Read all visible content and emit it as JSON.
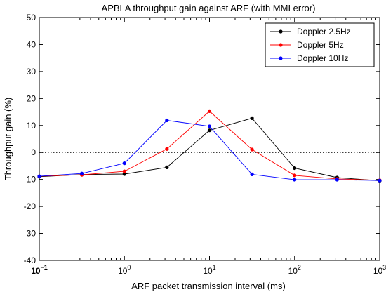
{
  "chart_data": {
    "type": "line",
    "title": "APBLA throughput gain against ARF (with MMI error)",
    "xlabel": "ARF packet transmission interval (ms)",
    "ylabel": "Throughput gain (%)",
    "x_scale": "log",
    "xlim": [
      0.1,
      1000
    ],
    "ylim": [
      -40,
      50
    ],
    "x_ticks": [
      {
        "value": 0.1,
        "base": "10",
        "exp": "−1"
      },
      {
        "value": 1,
        "base": "10",
        "exp": "0"
      },
      {
        "value": 10,
        "base": "10",
        "exp": "1"
      },
      {
        "value": 100,
        "base": "10",
        "exp": "2"
      },
      {
        "value": 1000,
        "base": "10",
        "exp": "3"
      }
    ],
    "y_ticks": [
      -40,
      -30,
      -20,
      -10,
      0,
      10,
      20,
      30,
      40,
      50
    ],
    "reference_line": {
      "y": 0,
      "style": "dotted"
    },
    "grid": false,
    "legend_position": "top-right",
    "series": [
      {
        "name": "Doppler 2.5Hz",
        "color": "#000000",
        "x": [
          0.1,
          0.316,
          1,
          3.16,
          10,
          31.6,
          100,
          316,
          1000
        ],
        "y": [
          -9,
          -8.2,
          -8,
          -5.5,
          8.2,
          12.7,
          -5.8,
          -9.3,
          -10.5
        ]
      },
      {
        "name": "Doppler 5Hz",
        "color": "#ff0000",
        "x": [
          0.1,
          0.316,
          1,
          3.16,
          10,
          31.6,
          100,
          316,
          1000
        ],
        "y": [
          -8.8,
          -8.3,
          -7,
          1.3,
          15.3,
          1.1,
          -8.5,
          -9.8,
          -10.3
        ]
      },
      {
        "name": "Doppler 10Hz",
        "color": "#0000ff",
        "x": [
          0.1,
          0.316,
          1,
          3.16,
          10,
          31.6,
          100,
          316,
          1000
        ],
        "y": [
          -8.8,
          -7.8,
          -4,
          11.9,
          9.7,
          -8.1,
          -10.1,
          -10.1,
          -10.4
        ]
      }
    ]
  }
}
